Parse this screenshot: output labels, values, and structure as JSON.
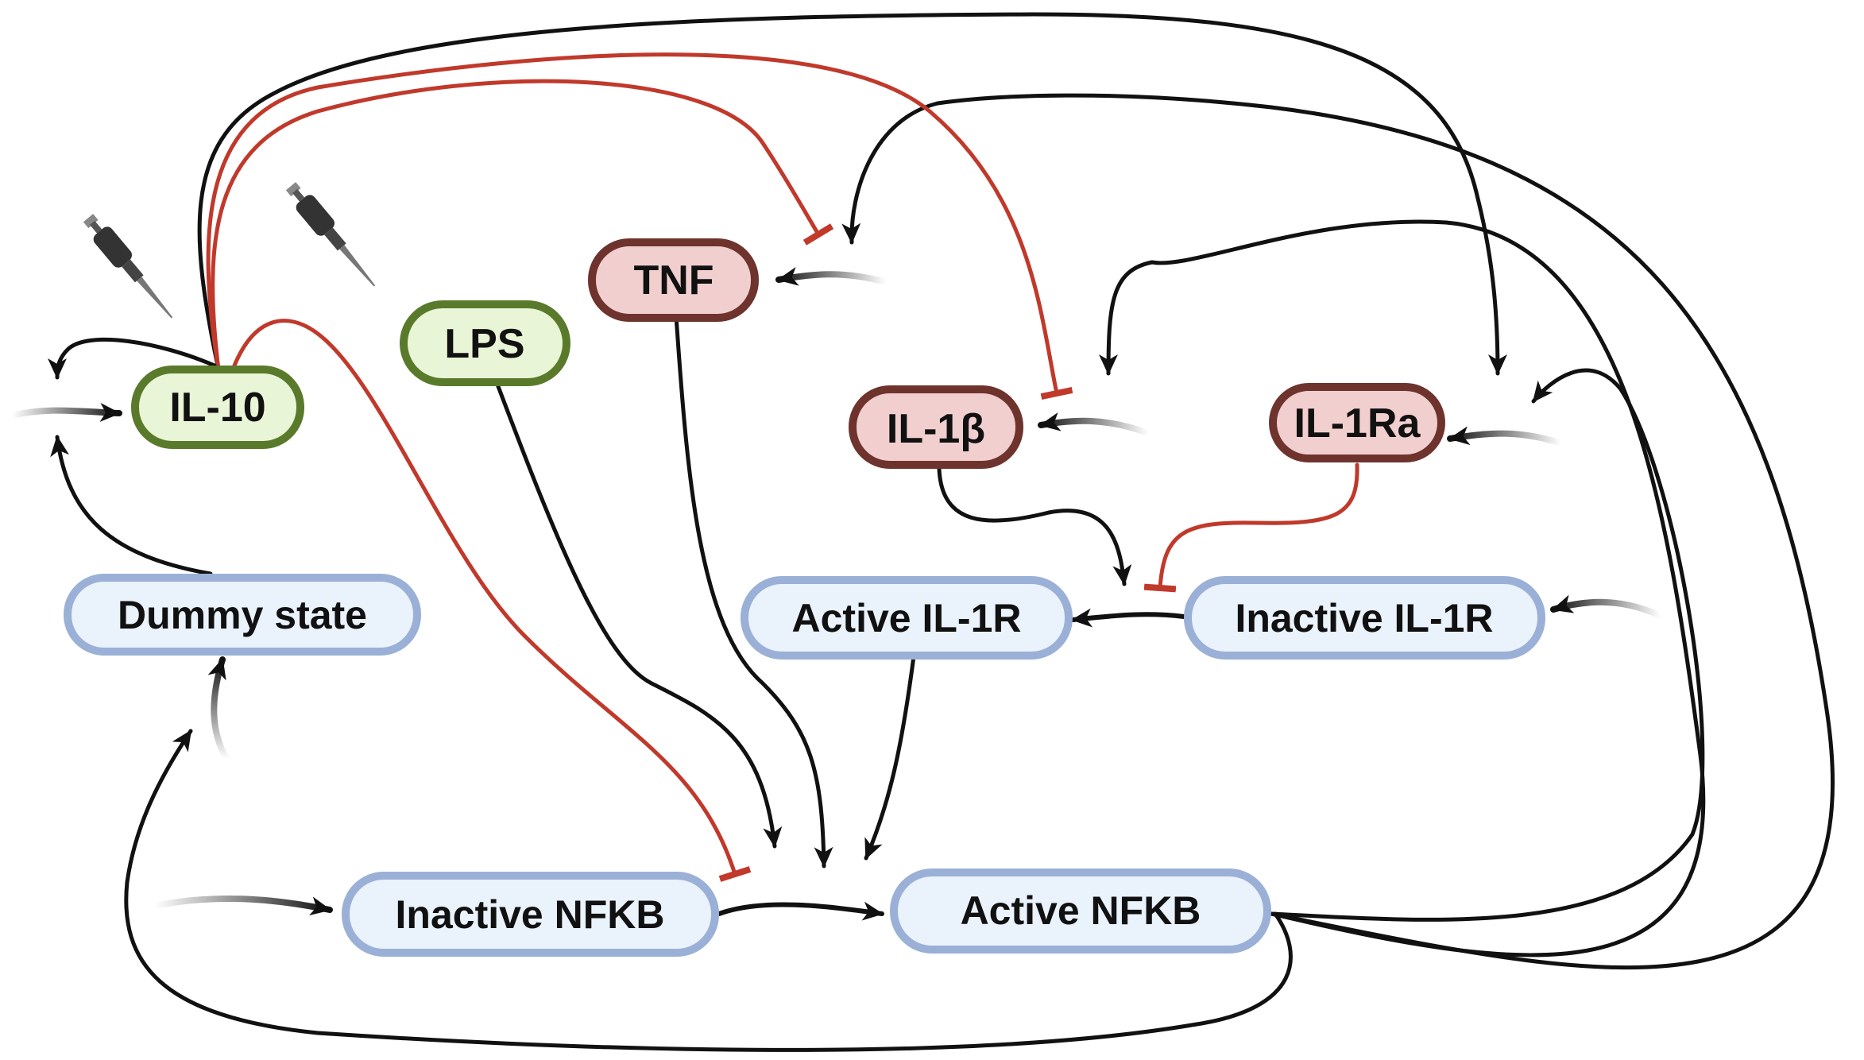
{
  "nodes": {
    "il10": {
      "label": "IL-10",
      "kind": "green"
    },
    "lps": {
      "label": "LPS",
      "kind": "green"
    },
    "tnf": {
      "label": "TNF",
      "kind": "red"
    },
    "il1b": {
      "label": "IL-1β",
      "kind": "red"
    },
    "il1ra": {
      "label": "IL-1Ra",
      "kind": "red"
    },
    "dummy": {
      "label": "Dummy state",
      "kind": "blue"
    },
    "active_il1r": {
      "label": "Active IL-1R",
      "kind": "blue"
    },
    "inactive_il1r": {
      "label": "Inactive IL-1R",
      "kind": "blue"
    },
    "inactive_nfkb": {
      "label": "Inactive NFKB",
      "kind": "blue"
    },
    "active_nfkb": {
      "label": "Active NFKB",
      "kind": "blue"
    }
  },
  "colors": {
    "green_fill": "#e8f5d6",
    "green_stroke": "#5a7a2b",
    "red_fill": "#f2cfcf",
    "red_stroke": "#6e332d",
    "blue_fill": "#eaf2fb",
    "blue_stroke": "#9ab0d6",
    "activation": "#111111",
    "inhibition": "#c0392b"
  },
  "icons": [
    "pipette-icon",
    "pipette-icon"
  ]
}
